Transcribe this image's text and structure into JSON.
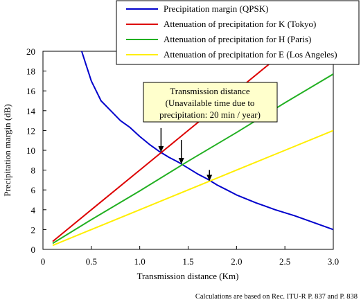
{
  "chart_data": {
    "type": "line",
    "xlabel": "Transmission distance (Km)",
    "ylabel": "Precipitation margin (dB)",
    "xlim": [
      0,
      3.0
    ],
    "ylim": [
      0,
      20
    ],
    "x_ticks": [
      0,
      0.5,
      1.0,
      1.5,
      2.0,
      2.5,
      3.0
    ],
    "x_tick_labels": [
      "0",
      "0.5",
      "1.0",
      "1.5",
      "2.0",
      "2.5",
      "3.0"
    ],
    "y_ticks": [
      0,
      2,
      4,
      6,
      8,
      10,
      12,
      14,
      16,
      18,
      20
    ],
    "y_tick_labels": [
      "0",
      "2",
      "4",
      "6",
      "8",
      "10",
      "12",
      "14",
      "16",
      "18",
      "20"
    ],
    "legend_position": "top-right, outside above plot",
    "series": [
      {
        "name": "Precipitation margin (QPSK)",
        "color": "#0000cc",
        "points": [
          [
            0.4,
            20.0
          ],
          [
            0.45,
            18.5
          ],
          [
            0.5,
            17.0
          ],
          [
            0.55,
            16.0
          ],
          [
            0.6,
            15.0
          ],
          [
            0.7,
            14.0
          ],
          [
            0.8,
            13.0
          ],
          [
            0.9,
            12.3
          ],
          [
            1.0,
            11.4
          ],
          [
            1.1,
            10.6
          ],
          [
            1.2,
            9.9
          ],
          [
            1.3,
            9.3
          ],
          [
            1.4,
            8.8
          ],
          [
            1.5,
            8.2
          ],
          [
            1.6,
            7.6
          ],
          [
            1.7,
            7.1
          ],
          [
            1.8,
            6.5
          ],
          [
            1.9,
            6.0
          ],
          [
            2.0,
            5.5
          ],
          [
            2.2,
            4.7
          ],
          [
            2.4,
            4.0
          ],
          [
            2.6,
            3.4
          ],
          [
            2.8,
            2.7
          ],
          [
            3.0,
            2.0
          ]
        ]
      },
      {
        "name": "Attenuation of precipitation for K (Tokyo)",
        "color": "#dd0000",
        "points": [
          [
            0.1,
            0.8
          ],
          [
            0.5,
            4.0
          ],
          [
            1.0,
            8.0
          ],
          [
            1.5,
            12.0
          ],
          [
            2.0,
            16.0
          ],
          [
            2.4,
            19.2
          ],
          [
            2.5,
            20.0
          ]
        ]
      },
      {
        "name": "Attenuation of precipitation for H (Paris)",
        "color": "#22b022",
        "points": [
          [
            0.1,
            0.6
          ],
          [
            0.5,
            3.0
          ],
          [
            1.0,
            5.9
          ],
          [
            1.5,
            8.9
          ],
          [
            2.0,
            11.8
          ],
          [
            2.5,
            14.8
          ],
          [
            3.0,
            17.7
          ]
        ]
      },
      {
        "name": "Attenuation of precipitation for E (Los Angeles)",
        "color": "#ffee00",
        "points": [
          [
            0.1,
            0.4
          ],
          [
            0.5,
            2.0
          ],
          [
            1.0,
            4.0
          ],
          [
            1.5,
            6.0
          ],
          [
            2.0,
            8.0
          ],
          [
            2.5,
            10.0
          ],
          [
            3.0,
            12.0
          ]
        ]
      }
    ],
    "annotation": {
      "lines": [
        "Transmission distance",
        "(Unavailable time due to",
        "precipitation: 20 min / year)"
      ],
      "arrow_targets": [
        [
          1.22,
          9.8
        ],
        [
          1.43,
          8.6
        ],
        [
          1.72,
          6.9
        ]
      ]
    },
    "footnote": "Calculations are based on Rec. ITU-R P. 837 and P. 838"
  }
}
